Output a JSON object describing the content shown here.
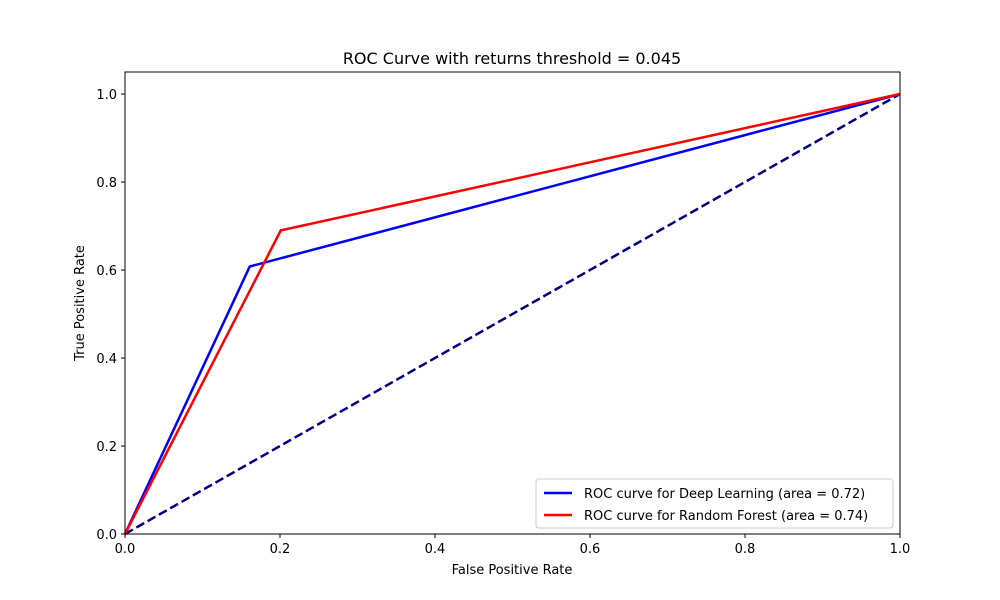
{
  "chart_data": {
    "type": "line",
    "title": "ROC Curve with returns threshold = 0.045",
    "xlabel": "False Positive Rate",
    "ylabel": "True Positive Rate",
    "xlim": [
      0.0,
      1.0
    ],
    "ylim": [
      0.0,
      1.05
    ],
    "x_ticks": [
      "0.0",
      "0.2",
      "0.4",
      "0.6",
      "0.8",
      "1.0"
    ],
    "y_ticks": [
      "0.0",
      "0.2",
      "0.4",
      "0.6",
      "0.8",
      "1.0"
    ],
    "grid": false,
    "legend_position": "bottom-right",
    "series": [
      {
        "name": "ROC curve for Deep Learning (area = 0.72)",
        "color": "#0000ff",
        "style": "solid",
        "points": [
          [
            0.0,
            0.0
          ],
          [
            0.161,
            0.608
          ],
          [
            1.0,
            1.0
          ]
        ]
      },
      {
        "name": "ROC curve for Random Forest (area = 0.74)",
        "color": "#ff0000",
        "style": "solid",
        "points": [
          [
            0.0,
            0.0
          ],
          [
            0.201,
            0.69
          ],
          [
            1.0,
            1.0
          ]
        ]
      }
    ],
    "reference_line": {
      "color": "#000080",
      "style": "dashed",
      "points": [
        [
          0.0,
          0.0
        ],
        [
          1.0,
          1.0
        ]
      ]
    }
  }
}
